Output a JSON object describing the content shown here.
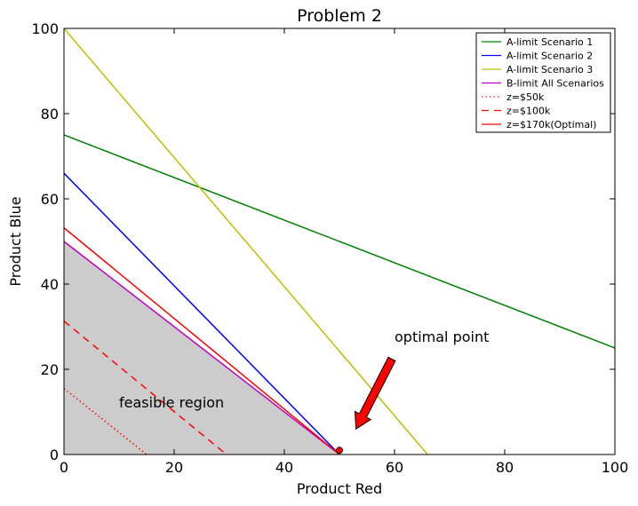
{
  "chart_data": {
    "type": "line",
    "title": "Problem 2",
    "xlabel": "Product Red",
    "ylabel": "Product Blue",
    "xlim": [
      0,
      100
    ],
    "ylim": [
      0,
      100
    ],
    "xticks": [
      0,
      20,
      40,
      60,
      80,
      100
    ],
    "yticks": [
      0,
      20,
      40,
      60,
      80,
      100
    ],
    "grid": false,
    "legend_position": "top-right",
    "series": [
      {
        "name": "A-limit Scenario 1",
        "color": "#008000",
        "style": "solid",
        "x": [
          0,
          100
        ],
        "y": [
          75,
          25
        ]
      },
      {
        "name": "A-limit Scenario 2",
        "color": "#0000ff",
        "style": "solid",
        "x": [
          0,
          50
        ],
        "y": [
          66,
          0
        ]
      },
      {
        "name": "A-limit Scenario 3",
        "color": "#bfbf00",
        "style": "solid",
        "x": [
          0,
          66
        ],
        "y": [
          100,
          0
        ]
      },
      {
        "name": "B-limit All Scenarios",
        "color": "#bf00bf",
        "style": "solid",
        "x": [
          0,
          50
        ],
        "y": [
          50,
          0
        ]
      },
      {
        "name": "z=$50k",
        "color": "#ff0000",
        "style": "dotted",
        "x": [
          0,
          15
        ],
        "y": [
          15.5,
          0
        ]
      },
      {
        "name": "z=$100k",
        "color": "#ff0000",
        "style": "dashed",
        "x": [
          0,
          29.5
        ],
        "y": [
          31.3,
          0
        ]
      },
      {
        "name": "z=$170k(Optimal)",
        "color": "#ff0000",
        "style": "solid",
        "x": [
          0,
          50
        ],
        "y": [
          53.2,
          0
        ]
      }
    ],
    "feasible_region": {
      "label": "feasible region",
      "color": "#cccccc",
      "polygon": [
        [
          0,
          0
        ],
        [
          0,
          50
        ],
        [
          50,
          0
        ]
      ]
    },
    "optimal_point": {
      "x": 50,
      "y": 1,
      "color": "#ff0000"
    },
    "annotations": [
      {
        "text": "feasible region",
        "x": 10,
        "y": 10
      },
      {
        "text": "optimal point",
        "x": 60,
        "y": 25,
        "arrow_to": [
          53,
          6
        ]
      }
    ]
  }
}
